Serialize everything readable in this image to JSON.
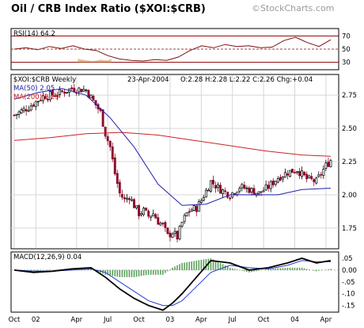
{
  "header": {
    "title": "Oil / CRB Index Ratio ($XOI:$CRB)",
    "watermark": "©StockCharts.com"
  },
  "colors": {
    "panel_bg": "#ffffff",
    "grid": "#d6d6d6",
    "ma50": "#2222aa",
    "ma200": "#cc2222",
    "rsi_line": "#7a1010",
    "rsi_ref_line": "#8b0000",
    "rsi_fill": "#c88c3c",
    "candle_up": "#000000",
    "candle_down": "#8b0a2a",
    "macd_line": "#000000",
    "macd_signal": "#2a3cc8",
    "macd_hist": "#5aa05a"
  },
  "chart_data": [
    {
      "type": "line",
      "panel": "rsi",
      "label": "RSI(14) 64.2",
      "ylim": [
        20,
        80
      ],
      "yticks": [
        30,
        50,
        70
      ],
      "ytick_labels": [
        "30",
        "50",
        "70"
      ],
      "reference_lines": [
        30,
        50,
        70
      ],
      "series": [
        {
          "name": "RSI(14)",
          "x": [
            0,
            3,
            6,
            9,
            12,
            15,
            18,
            21,
            24,
            27,
            30,
            33,
            36,
            39,
            42,
            45,
            48,
            51,
            54,
            57,
            60,
            63,
            66,
            69,
            72,
            75,
            78,
            81
          ],
          "values": [
            50,
            52,
            49,
            54,
            51,
            55,
            50,
            48,
            40,
            35,
            33,
            32,
            34,
            33,
            38,
            48,
            55,
            52,
            57,
            54,
            55,
            52,
            53,
            63,
            68,
            60,
            54,
            64.2
          ]
        }
      ]
    },
    {
      "type": "line",
      "panel": "price",
      "label": "$XOI:$CRB Weekly",
      "date_text": "23-Apr-2004",
      "ohlc_text": "O:2.28 H:2.28 L:2.22 C:2.26 Chg:+0.04",
      "ylim": [
        1.6,
        2.9
      ],
      "yticks": [
        1.75,
        2.0,
        2.25,
        2.5,
        2.75
      ],
      "ytick_labels": [
        "1.75",
        "2.00",
        "2.25",
        "2.50",
        "2.75"
      ],
      "x_categories": [
        "Oct",
        "02",
        "Apr",
        "Jul",
        "Oct",
        "03",
        "Apr",
        "Jul",
        "Oct",
        "04",
        "Apr"
      ],
      "x_category_positions": [
        0,
        9,
        26,
        39,
        52,
        65,
        78,
        91,
        104,
        117,
        130
      ],
      "series": [
        {
          "name": "$XOI:$CRB",
          "x": [
            0,
            6,
            12,
            18,
            24,
            30,
            36,
            38,
            40,
            42,
            44,
            46,
            48,
            50,
            52,
            54,
            56,
            58,
            60,
            62,
            64,
            66,
            68,
            70,
            72,
            74,
            76,
            78,
            82,
            86,
            90,
            94,
            98,
            102,
            106,
            110,
            114,
            118,
            122,
            126,
            130,
            132
          ],
          "values": [
            2.6,
            2.66,
            2.74,
            2.76,
            2.8,
            2.79,
            2.62,
            2.46,
            2.36,
            2.16,
            2.01,
            1.96,
            1.99,
            1.92,
            1.86,
            1.88,
            1.84,
            1.86,
            1.8,
            1.77,
            1.69,
            1.72,
            1.68,
            1.79,
            1.86,
            1.89,
            1.9,
            1.96,
            2.1,
            2.04,
            2.0,
            2.06,
            2.04,
            2.01,
            2.06,
            2.13,
            2.17,
            2.19,
            2.12,
            2.1,
            2.22,
            2.26
          ]
        },
        {
          "name": "MA(50) 2.05",
          "x": [
            0,
            10,
            20,
            30,
            40,
            50,
            60,
            70,
            80,
            90,
            100,
            110,
            120,
            132
          ],
          "values": [
            2.72,
            2.77,
            2.8,
            2.75,
            2.58,
            2.36,
            2.08,
            1.92,
            1.93,
            2.0,
            2.0,
            2.0,
            2.04,
            2.05
          ]
        },
        {
          "name": "MA(200) 2.29",
          "x": [
            0,
            15,
            30,
            45,
            60,
            75,
            90,
            105,
            120,
            132
          ],
          "values": [
            2.41,
            2.43,
            2.46,
            2.47,
            2.45,
            2.41,
            2.37,
            2.33,
            2.3,
            2.29
          ]
        }
      ]
    },
    {
      "type": "line",
      "panel": "macd",
      "label": "MACD(12,26,9) 0.04",
      "ylim": [
        -0.175,
        0.07
      ],
      "yticks": [
        -0.15,
        -0.1,
        -0.05,
        0.0,
        0.05
      ],
      "ytick_labels": [
        "-.15",
        "-.10",
        "-.05",
        "0.00",
        ".05"
      ],
      "series": [
        {
          "name": "MACD",
          "x": [
            0,
            8,
            16,
            24,
            32,
            38,
            44,
            50,
            56,
            62,
            66,
            70,
            76,
            82,
            90,
            98,
            106,
            114,
            120,
            126,
            132
          ],
          "values": [
            0.0,
            -0.01,
            -0.005,
            0.005,
            0.01,
            -0.03,
            -0.08,
            -0.12,
            -0.15,
            -0.17,
            -0.14,
            -0.1,
            -0.03,
            0.04,
            0.03,
            0.0,
            0.01,
            0.03,
            0.05,
            0.03,
            0.04
          ]
        },
        {
          "name": "Signal",
          "x": [
            0,
            8,
            16,
            24,
            32,
            38,
            44,
            50,
            56,
            62,
            66,
            70,
            76,
            82,
            90,
            98,
            106,
            114,
            120,
            126,
            132
          ],
          "values": [
            0.0,
            -0.005,
            -0.005,
            0.0,
            0.005,
            -0.01,
            -0.05,
            -0.09,
            -0.13,
            -0.15,
            -0.15,
            -0.13,
            -0.07,
            -0.01,
            0.02,
            0.01,
            0.005,
            0.02,
            0.04,
            0.035,
            0.035
          ]
        }
      ]
    }
  ]
}
